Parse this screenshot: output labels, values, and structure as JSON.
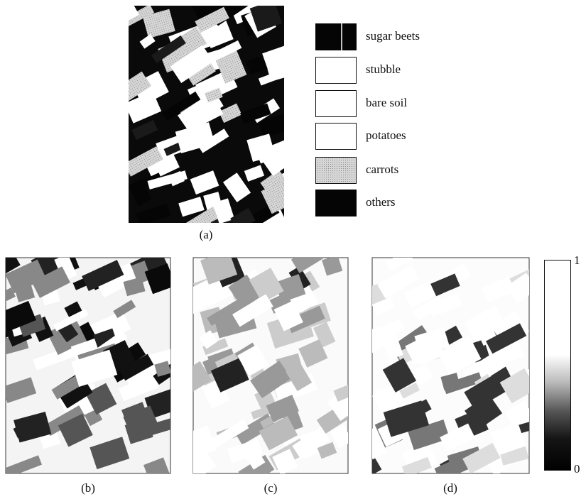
{
  "figure": {
    "legend": [
      "sugar beets",
      "stubble",
      "bare soil",
      "potatoes",
      "carrots",
      "others"
    ],
    "captions": [
      "(a)",
      "(b)",
      "(c)",
      "(d)"
    ],
    "colorbar": {
      "top_label": "1",
      "bottom_label": "0"
    }
  }
}
